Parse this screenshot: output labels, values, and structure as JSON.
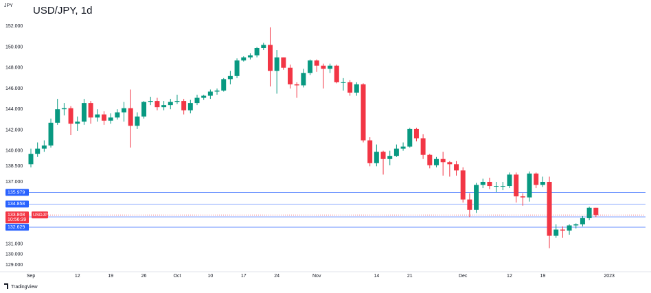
{
  "chart_data": {
    "type": "candlestick",
    "axis_label": "JPY",
    "title": "USD/JPY, 1d",
    "categories": [
      "Sep",
      null,
      null,
      null,
      null,
      null,
      null,
      "12",
      null,
      null,
      null,
      null,
      "19",
      null,
      null,
      null,
      null,
      "26",
      null,
      null,
      null,
      null,
      "Oct",
      null,
      null,
      null,
      null,
      "10",
      null,
      null,
      null,
      null,
      "17",
      null,
      null,
      null,
      null,
      "24",
      null,
      null,
      null,
      null,
      null,
      "Nov",
      null,
      null,
      null,
      null,
      null,
      null,
      null,
      null,
      "14",
      null,
      null,
      null,
      null,
      "21",
      null,
      null,
      null,
      null,
      null,
      null,
      null,
      "Dec",
      null,
      null,
      null,
      null,
      null,
      null,
      "12",
      null,
      null,
      null,
      null,
      "19",
      null,
      null,
      null,
      null,
      null,
      null,
      null,
      null,
      null,
      "2023"
    ],
    "open": [
      138.7,
      139.7,
      140.2,
      140.5,
      142.7,
      144.0,
      144.1,
      142.6,
      142.8,
      144.6,
      143.2,
      143.5,
      142.9,
      143.2,
      143.7,
      144.1,
      142.4,
      143.3,
      144.7,
      144.8,
      144.2,
      144.4,
      144.7,
      144.8,
      143.9,
      144.6,
      145.1,
      145.3,
      145.7,
      145.8,
      146.9,
      147.2,
      148.7,
      149.0,
      149.2,
      149.9,
      150.2,
      147.7,
      149.0,
      148.0,
      146.4,
      146.3,
      147.5,
      148.7,
      148.2,
      147.9,
      148.2,
      146.6,
      146.6,
      145.6,
      146.4,
      141.0,
      138.8,
      139.9,
      139.2,
      139.5,
      140.2,
      140.4,
      142.1,
      141.2,
      139.6,
      138.6,
      139.2,
      138.9,
      138.7,
      138.1,
      135.3,
      134.3,
      136.7,
      137.0,
      136.6,
      136.6,
      136.6,
      137.7,
      135.6,
      135.5,
      137.8,
      136.7,
      137.0,
      131.8,
      132.4,
      132.3,
      132.8,
      132.9,
      133.5,
      134.5,
      null,
      null
    ],
    "high": [
      140.2,
      140.8,
      141.0,
      143.1,
      145.0,
      144.6,
      144.3,
      143.3,
      145.0,
      144.8,
      144.0,
      143.8,
      143.6,
      144.0,
      144.7,
      145.9,
      143.7,
      144.8,
      145.2,
      145.1,
      144.8,
      145.0,
      145.4,
      145.0,
      144.9,
      145.4,
      145.4,
      145.9,
      146.0,
      147.0,
      147.7,
      148.9,
      149.1,
      149.4,
      150.0,
      150.4,
      151.9,
      149.7,
      149.0,
      148.3,
      146.6,
      147.9,
      148.8,
      148.8,
      148.4,
      148.4,
      148.3,
      147.0,
      146.8,
      146.6,
      146.5,
      141.3,
      140.6,
      140.0,
      140.0,
      140.6,
      140.8,
      142.2,
      142.2,
      141.6,
      139.7,
      139.4,
      139.9,
      139.0,
      139.0,
      138.4,
      135.9,
      136.9,
      137.3,
      137.4,
      137.0,
      137.0,
      137.9,
      137.9,
      135.9,
      138.0,
      137.9,
      137.5,
      137.5,
      132.9,
      132.7,
      132.9,
      133.0,
      133.7,
      134.6,
      134.5,
      null,
      null
    ],
    "low": [
      138.4,
      139.4,
      139.9,
      140.3,
      142.5,
      143.4,
      141.5,
      141.9,
      142.5,
      142.6,
      142.8,
      142.5,
      142.6,
      143.0,
      142.8,
      140.3,
      142.1,
      143.1,
      144.4,
      143.9,
      143.9,
      144.0,
      144.5,
      143.5,
      143.6,
      144.4,
      144.9,
      145.0,
      145.4,
      145.7,
      146.4,
      147.0,
      148.6,
      148.8,
      149.0,
      149.7,
      146.2,
      145.5,
      147.8,
      146.0,
      145.1,
      146.1,
      147.3,
      147.6,
      146.0,
      147.5,
      146.5,
      145.8,
      145.3,
      145.3,
      140.8,
      138.5,
      138.5,
      137.7,
      138.6,
      139.4,
      140.0,
      140.3,
      140.9,
      139.2,
      138.3,
      138.4,
      137.6,
      137.5,
      137.6,
      135.0,
      133.6,
      134.0,
      136.4,
      136.3,
      136.0,
      136.2,
      136.4,
      135.0,
      134.7,
      135.1,
      136.4,
      136.5,
      130.6,
      131.6,
      131.6,
      131.9,
      132.5,
      132.7,
      133.3,
      133.6,
      null,
      null
    ],
    "close": [
      139.7,
      140.2,
      140.5,
      142.7,
      144.0,
      144.1,
      142.6,
      142.8,
      144.6,
      143.2,
      143.5,
      142.9,
      143.2,
      143.7,
      144.1,
      142.4,
      143.3,
      144.7,
      144.8,
      144.2,
      144.4,
      144.7,
      144.8,
      143.9,
      144.6,
      145.1,
      145.3,
      145.7,
      145.8,
      146.9,
      147.2,
      148.7,
      149.0,
      149.2,
      149.9,
      150.2,
      147.7,
      149.0,
      148.0,
      146.4,
      146.3,
      147.5,
      148.7,
      148.2,
      147.9,
      148.2,
      146.6,
      146.6,
      145.6,
      146.4,
      141.0,
      138.8,
      139.9,
      139.2,
      139.5,
      140.2,
      140.4,
      142.1,
      141.2,
      139.6,
      138.6,
      139.2,
      138.9,
      138.7,
      138.1,
      135.3,
      134.3,
      136.7,
      137.0,
      136.6,
      136.6,
      136.6,
      137.7,
      135.6,
      135.5,
      137.8,
      136.7,
      137.0,
      131.8,
      132.4,
      132.3,
      132.8,
      132.9,
      133.5,
      134.5,
      133.8,
      null,
      null
    ],
    "up_color": "#089981",
    "down_color": "#f23645",
    "ylim": [
      128.4,
      154.2
    ],
    "yticks": [
      {
        "value": 152,
        "label": "152.000"
      },
      {
        "value": 150,
        "label": "150.000"
      },
      {
        "value": 148,
        "label": "148.000"
      },
      {
        "value": 146,
        "label": "146.000"
      },
      {
        "value": 144,
        "label": "144.000"
      },
      {
        "value": 142,
        "label": "142.000"
      },
      {
        "value": 140,
        "label": "140.000"
      },
      {
        "value": 138.5,
        "label": "138.500"
      },
      {
        "value": 137,
        "label": "137.000"
      },
      {
        "value": 131,
        "label": "131.000"
      },
      {
        "value": 130,
        "label": "130.000"
      },
      {
        "value": 129,
        "label": "129.000"
      }
    ],
    "grid": false,
    "price_lines": [
      {
        "value": 135.979,
        "label": "135.979"
      },
      {
        "value": 134.858,
        "label": "134.858"
      },
      {
        "value": 133.623,
        "label": "133.623"
      },
      {
        "value": 132.629,
        "label": "132.629"
      }
    ],
    "price_line_color": "#2962ff",
    "current_price": {
      "value": 133.808,
      "label": "133.808",
      "symbol": "USDJPY",
      "countdown": "10:56:39"
    },
    "brand": "TradingView"
  }
}
